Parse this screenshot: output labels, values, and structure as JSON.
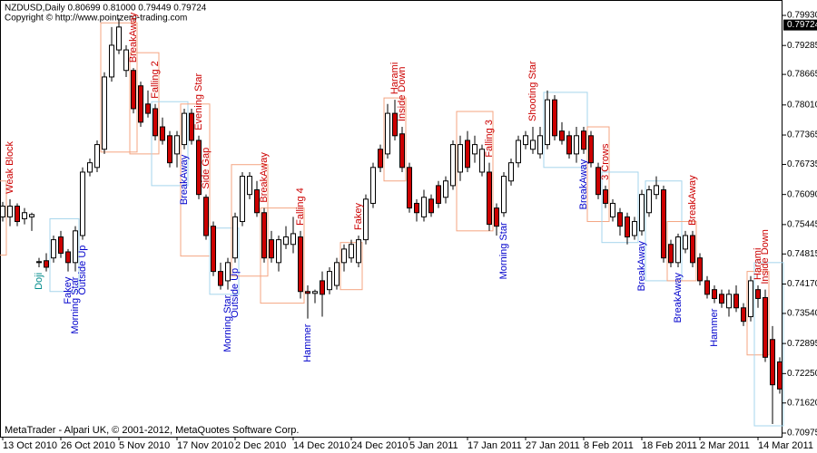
{
  "chart_data": {
    "type": "candlestick",
    "header": "NZDUSD,Daily  0.80699 0.81000 0.79449 0.79724",
    "copyright": "Copyright © http://www.pointzero-trading.com",
    "footer": "MetaTrader - Alpari UK, © 2001-2012, MetaQuotes Software Corp.",
    "bull_color": "#ffffff",
    "bear_color": "#cc0000",
    "ylim": [
      0.70897,
      0.8026
    ],
    "yticks": [
      {
        "value": 0.7993,
        "label": "0.79930"
      },
      {
        "value": 0.79285,
        "label": "0.79285"
      },
      {
        "value": 0.78665,
        "label": "0.78665"
      },
      {
        "value": 0.7801,
        "label": "0.78010"
      },
      {
        "value": 0.77365,
        "label": "0.77365"
      },
      {
        "value": 0.76735,
        "label": "0.76735"
      },
      {
        "value": 0.7609,
        "label": "0.76090"
      },
      {
        "value": 0.75445,
        "label": "0.75445"
      },
      {
        "value": 0.74815,
        "label": "0.74815"
      },
      {
        "value": 0.7417,
        "label": "0.74170"
      },
      {
        "value": 0.7354,
        "label": "0.73540"
      },
      {
        "value": 0.72895,
        "label": "0.72895"
      },
      {
        "value": 0.7225,
        "label": "0.72250"
      },
      {
        "value": 0.7162,
        "label": "0.71620"
      },
      {
        "value": 0.70975,
        "label": "0.70975"
      }
    ],
    "current_price": {
      "value": 0.79724,
      "label": "0.79724"
    },
    "categories": [
      "13 Oct 2010",
      null,
      null,
      null,
      null,
      null,
      null,
      null,
      "26 Oct 2010",
      null,
      null,
      null,
      null,
      null,
      null,
      null,
      "5 Nov 2010",
      null,
      null,
      null,
      null,
      null,
      null,
      null,
      "17 Nov 2010",
      null,
      null,
      null,
      null,
      null,
      null,
      null,
      "2 Dec 2010",
      null,
      null,
      null,
      null,
      null,
      null,
      null,
      "14 Dec 2010",
      null,
      null,
      null,
      null,
      null,
      null,
      null,
      "24 Dec 2010",
      null,
      null,
      null,
      null,
      null,
      null,
      null,
      "5 Jan 2011",
      null,
      null,
      null,
      null,
      null,
      null,
      null,
      "17 Jan 2011",
      null,
      null,
      null,
      null,
      null,
      null,
      null,
      "27 Jan 2011",
      null,
      null,
      null,
      null,
      null,
      null,
      null,
      "8 Feb 2011",
      null,
      null,
      null,
      null,
      null,
      null,
      null,
      "18 Feb 2011",
      null,
      null,
      null,
      null,
      null,
      null,
      null,
      "2 Mar 2011",
      null,
      null,
      null,
      null,
      null,
      null,
      null,
      "14 Mar 2011",
      null,
      null,
      null
    ],
    "ohlc": [
      [
        0.7561,
        0.7593,
        0.7551,
        0.7584
      ],
      [
        0.7561,
        0.7599,
        0.7541,
        0.7584
      ],
      [
        0.7584,
        0.759,
        0.7541,
        0.7551
      ],
      [
        0.7557,
        0.758,
        0.7545,
        0.757
      ],
      [
        0.7561,
        0.757,
        0.7531,
        0.7566
      ],
      [
        0.7463,
        0.7473,
        0.7453,
        0.7465
      ],
      [
        0.7467,
        0.7483,
        0.7444,
        0.7453
      ],
      [
        0.7473,
        0.7521,
        0.7463,
        0.7512
      ],
      [
        0.7518,
        0.7531,
        0.7473,
        0.7483
      ],
      [
        0.7486,
        0.7492,
        0.7444,
        0.7463
      ],
      [
        0.7463,
        0.7541,
        0.7444,
        0.7531
      ],
      [
        0.7521,
        0.7667,
        0.7512,
        0.7657
      ],
      [
        0.7657,
        0.7686,
        0.7648,
        0.7677
      ],
      [
        0.7667,
        0.7725,
        0.7657,
        0.7716
      ],
      [
        0.7706,
        0.7871,
        0.7696,
        0.7861
      ],
      [
        0.7861,
        0.7968,
        0.7851,
        0.7929
      ],
      [
        0.7919,
        0.7987,
        0.791,
        0.7968
      ],
      [
        0.7875,
        0.7929,
        0.7861,
        0.7919
      ],
      [
        0.7875,
        0.788,
        0.7783,
        0.7793
      ],
      [
        0.7842,
        0.7851,
        0.7754,
        0.7764
      ],
      [
        0.7803,
        0.7832,
        0.7774,
        0.7783
      ],
      [
        0.7793,
        0.7803,
        0.7725,
        0.7735
      ],
      [
        0.7754,
        0.7774,
        0.7716,
        0.7725
      ],
      [
        0.7735,
        0.7745,
        0.7667,
        0.7677
      ],
      [
        0.7696,
        0.7745,
        0.7667,
        0.7735
      ],
      [
        0.7716,
        0.7793,
        0.7706,
        0.7783
      ],
      [
        0.7783,
        0.7793,
        0.7716,
        0.7725
      ],
      [
        0.7725,
        0.7735,
        0.7599,
        0.7609
      ],
      [
        0.7603,
        0.7609,
        0.7512,
        0.7521
      ],
      [
        0.7541,
        0.7551,
        0.7434,
        0.7444
      ],
      [
        0.7444,
        0.7463,
        0.7405,
        0.7414
      ],
      [
        0.7424,
        0.7473,
        0.7405,
        0.7463
      ],
      [
        0.7473,
        0.757,
        0.7463,
        0.7561
      ],
      [
        0.7551,
        0.7657,
        0.7541,
        0.7648
      ],
      [
        0.7609,
        0.7657,
        0.7599,
        0.7648
      ],
      [
        0.7619,
        0.7638,
        0.7561,
        0.757
      ],
      [
        0.757,
        0.758,
        0.7463,
        0.7473
      ],
      [
        0.7512,
        0.7531,
        0.7463,
        0.7473
      ],
      [
        0.7463,
        0.7521,
        0.7444,
        0.7512
      ],
      [
        0.7502,
        0.7541,
        0.7492,
        0.7518
      ],
      [
        0.7502,
        0.7561,
        0.7483,
        0.7525
      ],
      [
        0.7518,
        0.7531,
        0.7386,
        0.7401
      ],
      [
        0.7401,
        0.7414,
        0.7343,
        0.7397
      ],
      [
        0.7397,
        0.7405,
        0.7376,
        0.7401
      ],
      [
        0.7424,
        0.7444,
        0.7347,
        0.7395
      ],
      [
        0.7405,
        0.7453,
        0.7395,
        0.7444
      ],
      [
        0.7414,
        0.7473,
        0.7405,
        0.7463
      ],
      [
        0.7463,
        0.7502,
        0.7444,
        0.7492
      ],
      [
        0.7473,
        0.7512,
        0.7463,
        0.7502
      ],
      [
        0.7463,
        0.7521,
        0.7453,
        0.7512
      ],
      [
        0.7512,
        0.7609,
        0.7502,
        0.7599
      ],
      [
        0.759,
        0.7677,
        0.758,
        0.7667
      ],
      [
        0.7706,
        0.7716,
        0.7657,
        0.7667
      ],
      [
        0.7696,
        0.7803,
        0.7686,
        0.7783
      ],
      [
        0.7783,
        0.7812,
        0.7725,
        0.7735
      ],
      [
        0.7739,
        0.7754,
        0.7657,
        0.7667
      ],
      [
        0.7667,
        0.7677,
        0.757,
        0.758
      ],
      [
        0.759,
        0.7599,
        0.7551,
        0.757
      ],
      [
        0.7561,
        0.7619,
        0.7551,
        0.7603
      ],
      [
        0.7599,
        0.7609,
        0.7561,
        0.757
      ],
      [
        0.7628,
        0.7638,
        0.758,
        0.759
      ],
      [
        0.7603,
        0.7648,
        0.759,
        0.7638
      ],
      [
        0.7628,
        0.7725,
        0.7619,
        0.7716
      ],
      [
        0.7657,
        0.7735,
        0.7638,
        0.7716
      ],
      [
        0.7725,
        0.7745,
        0.7657,
        0.7667
      ],
      [
        0.7696,
        0.7735,
        0.7677,
        0.7716
      ],
      [
        0.7657,
        0.7716,
        0.7648,
        0.7706
      ],
      [
        0.7657,
        0.7677,
        0.7531,
        0.7545
      ],
      [
        0.758,
        0.759,
        0.7521,
        0.7541
      ],
      [
        0.757,
        0.7657,
        0.7561,
        0.7648
      ],
      [
        0.7638,
        0.7686,
        0.7628,
        0.7677
      ],
      [
        0.7677,
        0.7735,
        0.7667,
        0.7725
      ],
      [
        0.7716,
        0.7745,
        0.7706,
        0.7735
      ],
      [
        0.7706,
        0.7754,
        0.7696,
        0.7725
      ],
      [
        0.7696,
        0.7754,
        0.7686,
        0.7735
      ],
      [
        0.7716,
        0.7832,
        0.7706,
        0.7812
      ],
      [
        0.7812,
        0.7822,
        0.7725,
        0.7735
      ],
      [
        0.7745,
        0.7764,
        0.7716,
        0.7725
      ],
      [
        0.7735,
        0.7745,
        0.7686,
        0.7696
      ],
      [
        0.7696,
        0.7754,
        0.7677,
        0.7735
      ],
      [
        0.7745,
        0.7754,
        0.7696,
        0.7706
      ],
      [
        0.7735,
        0.7745,
        0.7667,
        0.7677
      ],
      [
        0.7667,
        0.7677,
        0.7599,
        0.7609
      ],
      [
        0.7619,
        0.7628,
        0.758,
        0.759
      ],
      [
        0.7561,
        0.7599,
        0.7551,
        0.759
      ],
      [
        0.757,
        0.758,
        0.7521,
        0.7541
      ],
      [
        0.7561,
        0.757,
        0.7502,
        0.7518
      ],
      [
        0.7521,
        0.7561,
        0.7512,
        0.7551
      ],
      [
        0.7531,
        0.7619,
        0.7521,
        0.7609
      ],
      [
        0.757,
        0.7628,
        0.7561,
        0.7619
      ],
      [
        0.7609,
        0.7648,
        0.7599,
        0.7628
      ],
      [
        0.7619,
        0.7628,
        0.7463,
        0.7473
      ],
      [
        0.7502,
        0.7512,
        0.7453,
        0.7463
      ],
      [
        0.7463,
        0.7525,
        0.7453,
        0.7518
      ],
      [
        0.7492,
        0.7531,
        0.7483,
        0.7521
      ],
      [
        0.7521,
        0.7531,
        0.7453,
        0.7463
      ],
      [
        0.7473,
        0.7483,
        0.7414,
        0.7424
      ],
      [
        0.7424,
        0.7434,
        0.7386,
        0.7395
      ],
      [
        0.7405,
        0.7414,
        0.7376,
        0.7386
      ],
      [
        0.7395,
        0.7405,
        0.7366,
        0.7376
      ],
      [
        0.7366,
        0.7405,
        0.7347,
        0.7395
      ],
      [
        0.7395,
        0.7414,
        0.7357,
        0.7366
      ],
      [
        0.7366,
        0.7376,
        0.7327,
        0.7337
      ],
      [
        0.7347,
        0.7434,
        0.7337,
        0.7424
      ],
      [
        0.7405,
        0.7414,
        0.7366,
        0.7386
      ],
      [
        0.7388,
        0.7405,
        0.725,
        0.726
      ],
      [
        0.7298,
        0.7327,
        0.7117,
        0.7201
      ],
      [
        0.725,
        0.726,
        0.7182,
        0.7192
      ]
    ],
    "boxes": [
      {
        "from": 0,
        "to": 0,
        "top": 0.7638,
        "bottom": 0.7479,
        "color": "#f4a582"
      },
      {
        "from": 7,
        "to": 10,
        "top": 0.7557,
        "bottom": 0.7401,
        "color": "#a6d5ec"
      },
      {
        "from": 14,
        "to": 18,
        "top": 0.7977,
        "bottom": 0.77,
        "color": "#f4a582"
      },
      {
        "from": 18,
        "to": 21,
        "top": 0.7913,
        "bottom": 0.7696,
        "color": "#f4a582"
      },
      {
        "from": 21,
        "to": 25,
        "top": 0.7808,
        "bottom": 0.7628,
        "color": "#a6d5ec"
      },
      {
        "from": 25,
        "to": 28,
        "top": 0.7803,
        "bottom": 0.7477,
        "color": "#f4a582"
      },
      {
        "from": 29,
        "to": 32,
        "top": 0.7537,
        "bottom": 0.7395,
        "color": "#a6d5ec"
      },
      {
        "from": 32,
        "to": 36,
        "top": 0.7673,
        "bottom": 0.7434,
        "color": "#f4a582"
      },
      {
        "from": 36,
        "to": 41,
        "top": 0.758,
        "bottom": 0.7376,
        "color": "#f4a582"
      },
      {
        "from": 47,
        "to": 49,
        "top": 0.7506,
        "bottom": 0.7405,
        "color": "#f4a582"
      },
      {
        "from": 53,
        "to": 55,
        "top": 0.7816,
        "bottom": 0.7638,
        "color": "#f4a582"
      },
      {
        "from": 63,
        "to": 67,
        "top": 0.7787,
        "bottom": 0.7531,
        "color": "#f4a582"
      },
      {
        "from": 75,
        "to": 80,
        "top": 0.7828,
        "bottom": 0.7667,
        "color": "#a6d5ec"
      },
      {
        "from": 81,
        "to": 83,
        "top": 0.7754,
        "bottom": 0.7551,
        "color": "#f4a582"
      },
      {
        "from": 83,
        "to": 87,
        "top": 0.7657,
        "bottom": 0.7506,
        "color": "#a6d5ec"
      },
      {
        "from": 89,
        "to": 93,
        "top": 0.7638,
        "bottom": 0.7424,
        "color": "#a6d5ec"
      },
      {
        "from": 92,
        "to": 95,
        "top": 0.7551,
        "bottom": 0.7424,
        "color": "#f4a582"
      },
      {
        "from": 103,
        "to": 105,
        "top": 0.7444,
        "bottom": 0.7265,
        "color": "#f4a582"
      },
      {
        "from": 104,
        "to": 107,
        "top": 0.7463,
        "bottom": 0.7113,
        "color": "#a6d5ec"
      }
    ],
    "annotations": [
      {
        "text": "Weak Block",
        "index": 1,
        "side": "above",
        "color": "#cc0000"
      },
      {
        "text": "Doji",
        "index": 5,
        "side": "below",
        "color": "#008b8b"
      },
      {
        "text": "Fakey",
        "index": 9,
        "side": "below",
        "color": "#0000cc"
      },
      {
        "text": "Morning Star",
        "index": 10,
        "side": "below",
        "color": "#0000cc"
      },
      {
        "text": "Outside Up",
        "index": 11,
        "side": "below",
        "color": "#0000cc"
      },
      {
        "text": "BreakAway",
        "index": 18,
        "side": "above",
        "color": "#cc0000"
      },
      {
        "text": "Falling 2",
        "index": 21,
        "side": "above",
        "color": "#cc0000"
      },
      {
        "text": "BreakAway",
        "index": 25,
        "side": "below",
        "color": "#0000cc"
      },
      {
        "text": "Evening Star",
        "index": 27,
        "side": "above",
        "color": "#cc0000"
      },
      {
        "text": "Side Gap",
        "index": 28,
        "side": "above",
        "color": "#cc0000"
      },
      {
        "text": "Morning Star",
        "index": 31,
        "side": "below",
        "color": "#0000cc"
      },
      {
        "text": "Outside Up",
        "index": 32,
        "side": "below",
        "color": "#0000cc"
      },
      {
        "text": "BreakAway",
        "index": 36,
        "side": "above",
        "color": "#cc0000"
      },
      {
        "text": "Falling 4",
        "index": 41,
        "side": "above",
        "color": "#cc0000"
      },
      {
        "text": "Hammer",
        "index": 42,
        "side": "below",
        "color": "#0000cc"
      },
      {
        "text": "Fakey",
        "index": 49,
        "side": "above",
        "color": "#cc0000"
      },
      {
        "text": "Harami",
        "index": 54,
        "side": "above",
        "color": "#cc0000"
      },
      {
        "text": "Inside Down",
        "index": 55,
        "side": "above",
        "color": "#cc0000"
      },
      {
        "text": "Falling 3",
        "index": 67,
        "side": "above",
        "color": "#cc0000"
      },
      {
        "text": "Morning Star",
        "index": 69,
        "side": "below",
        "color": "#0000cc"
      },
      {
        "text": "Shooting Star",
        "index": 73,
        "side": "above",
        "color": "#cc0000"
      },
      {
        "text": "BreakAway",
        "index": 80,
        "side": "below",
        "color": "#0000cc"
      },
      {
        "text": "3 Crows",
        "index": 83,
        "side": "above",
        "color": "#cc0000"
      },
      {
        "text": "BreakAway",
        "index": 88,
        "side": "below",
        "color": "#0000cc"
      },
      {
        "text": "BreakAway",
        "index": 93,
        "side": "below",
        "color": "#0000cc"
      },
      {
        "text": "BreakAway",
        "index": 95,
        "side": "above",
        "color": "#cc0000"
      },
      {
        "text": "Hammer",
        "index": 98,
        "side": "below",
        "color": "#0000cc"
      },
      {
        "text": "Harami",
        "index": 104,
        "side": "above",
        "color": "#cc0000"
      },
      {
        "text": "Inside Down",
        "index": 105,
        "side": "above",
        "color": "#cc0000"
      }
    ]
  }
}
